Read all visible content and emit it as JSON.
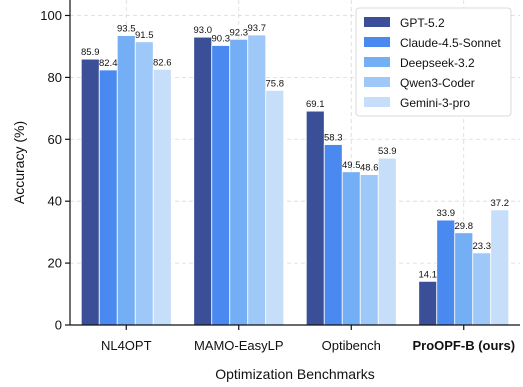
{
  "chart_data": {
    "type": "bar",
    "xlabel": "Optimization Benchmarks",
    "ylabel": "Accuracy (%)",
    "ylim": [
      0,
      105
    ],
    "yticks": [
      0,
      20,
      40,
      60,
      80,
      100
    ],
    "grid": true,
    "legend_position": "top-right",
    "categories": [
      "NL4OPT",
      "MAMO-EasyLP",
      "Optibench",
      "ProOPF-B (ours)"
    ],
    "bold_categories": [
      "ProOPF-B (ours)"
    ],
    "series": [
      {
        "name": "GPT-5.2",
        "color": "#3a4f97",
        "values": [
          85.9,
          93.0,
          69.1,
          14.1
        ]
      },
      {
        "name": "Claude-4.5-Sonnet",
        "color": "#4a8af0",
        "values": [
          82.4,
          90.3,
          58.3,
          33.9
        ]
      },
      {
        "name": "Deepseek-3.2",
        "color": "#74aef4",
        "values": [
          93.5,
          92.3,
          49.5,
          29.8
        ]
      },
      {
        "name": "Qwen3-Coder",
        "color": "#9ec8f7",
        "values": [
          91.5,
          93.7,
          48.6,
          23.3
        ]
      },
      {
        "name": "Gemini-3-pro",
        "color": "#c6def9",
        "values": [
          82.6,
          75.8,
          53.9,
          37.2
        ]
      }
    ],
    "data_labels": [
      [
        "85.9",
        "82.4",
        "93.5",
        "91.5",
        "82.6"
      ],
      [
        "93.0",
        "90.3",
        "92.3",
        "93.7",
        "75.8"
      ],
      [
        "69.1",
        "58.3",
        "49.5",
        "48.6",
        "53.9"
      ],
      [
        "14.1",
        "33.9",
        "29.8",
        "23.3",
        "37.2"
      ]
    ]
  }
}
